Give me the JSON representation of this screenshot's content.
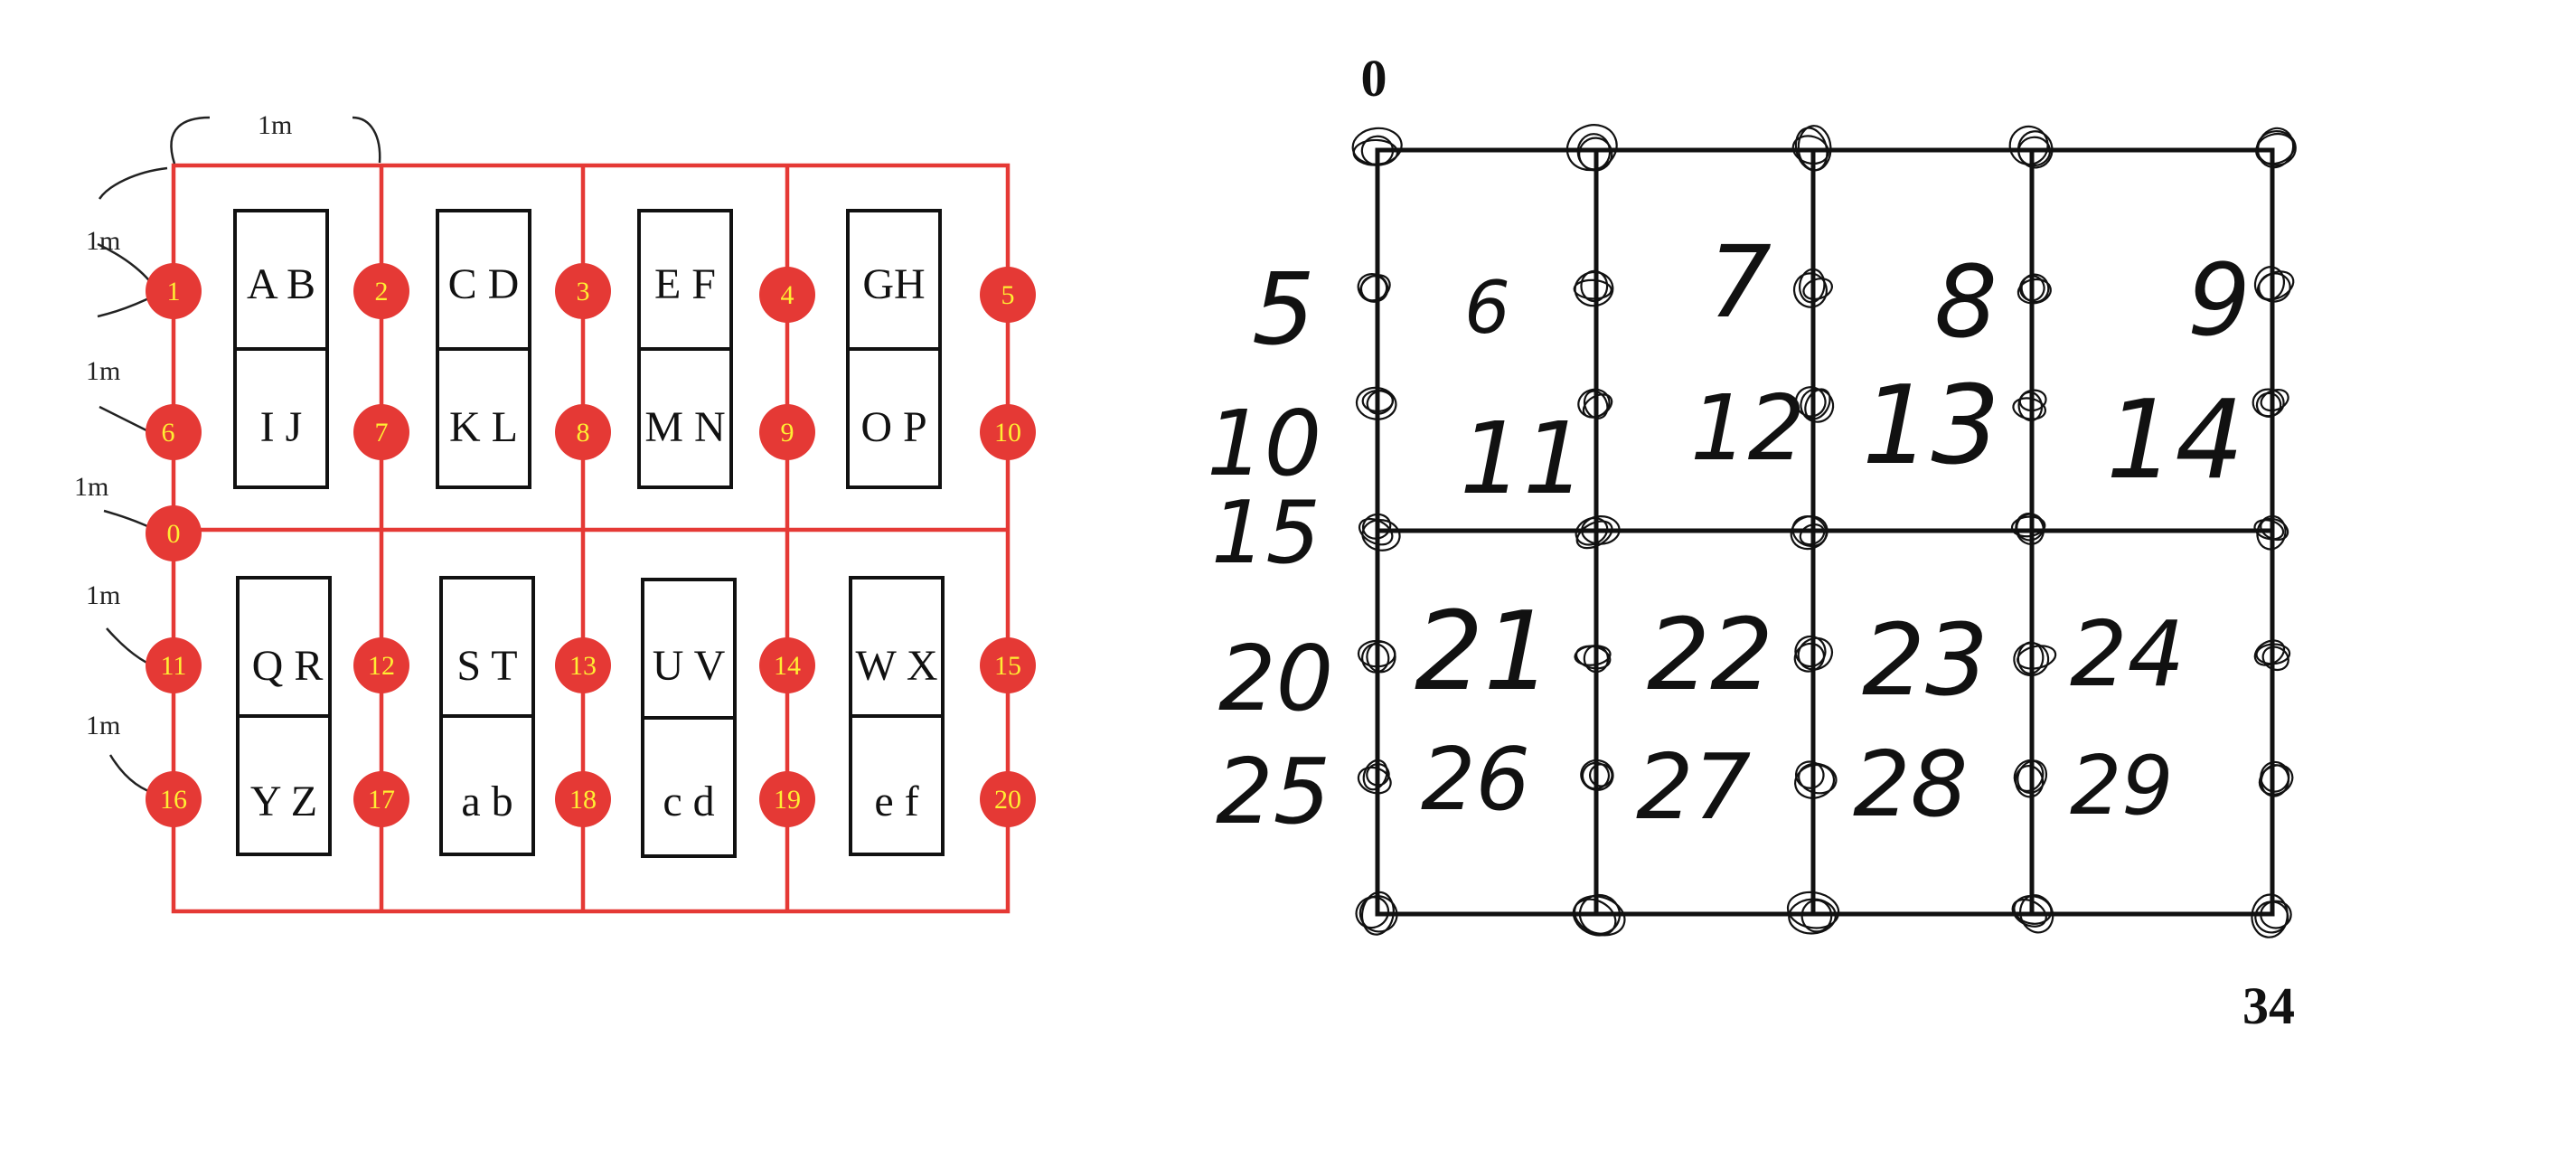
{
  "left_diagram": {
    "dimension_labels": [
      "1m",
      "1m",
      "1m",
      "1m",
      "1m",
      "1m"
    ],
    "nodes": [
      "1",
      "2",
      "3",
      "4",
      "5",
      "6",
      "7",
      "8",
      "9",
      "10",
      "0",
      "11",
      "12",
      "13",
      "14",
      "15",
      "16",
      "17",
      "18",
      "19",
      "20"
    ],
    "boxes": [
      {
        "top": "A B",
        "bottom": "I J"
      },
      {
        "top": "C D",
        "bottom": "K L"
      },
      {
        "top": "E F",
        "bottom": "M N"
      },
      {
        "top": "GH",
        "bottom": "O P"
      },
      {
        "top": "Q R",
        "bottom": "Y Z"
      },
      {
        "top": "S T",
        "bottom": "a b"
      },
      {
        "top": "U V",
        "bottom": "c d"
      },
      {
        "top": "W X",
        "bottom": "e f"
      }
    ],
    "colors": {
      "line": "#e53935",
      "node_fill": "#e53935",
      "node_text": "#ffee33",
      "box_stroke": "#111111"
    }
  },
  "right_diagram": {
    "corner_top_label": "0",
    "corner_bottom_label": "34",
    "cell_numbers": [
      "5",
      "6",
      "7",
      "8",
      "9",
      "10",
      "11",
      "12",
      "13",
      "14",
      "15",
      "20",
      "21",
      "22",
      "23",
      "24",
      "25",
      "26",
      "27",
      "28",
      "29"
    ],
    "colors": {
      "line": "#111111"
    }
  }
}
